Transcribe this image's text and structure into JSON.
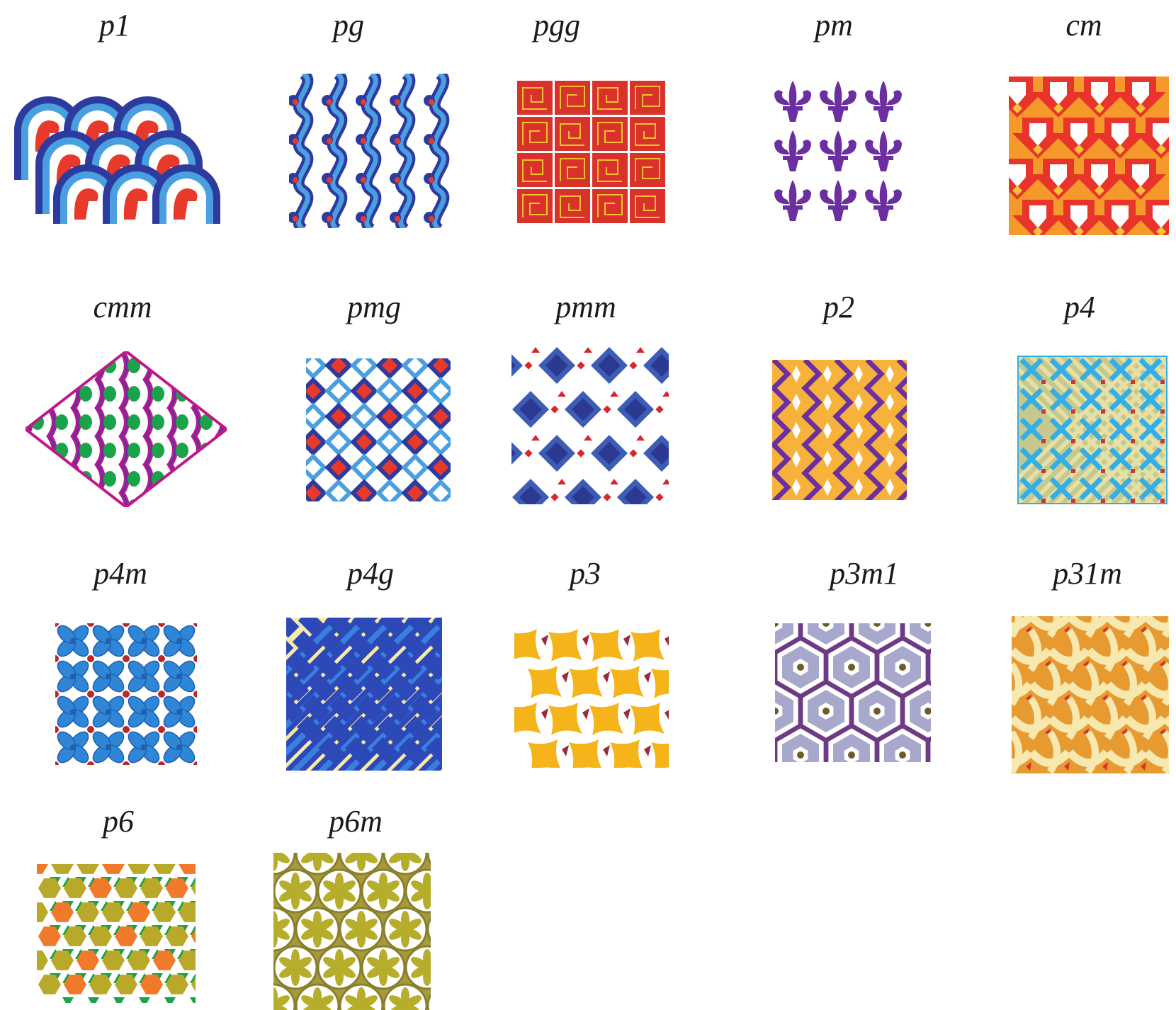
{
  "title": "",
  "groups": [
    {
      "label": "p1"
    },
    {
      "label": "pg"
    },
    {
      "label": "pgg"
    },
    {
      "label": "pm"
    },
    {
      "label": "cm"
    },
    {
      "label": "cmm"
    },
    {
      "label": "pmg"
    },
    {
      "label": "pmm"
    },
    {
      "label": "p2"
    },
    {
      "label": "p4"
    },
    {
      "label": "p4m"
    },
    {
      "label": "p4g"
    },
    {
      "label": "p3"
    },
    {
      "label": "p3m1"
    },
    {
      "label": "p31m"
    },
    {
      "label": "p6"
    },
    {
      "label": "p6m"
    }
  ],
  "palette": {
    "navy": "#2e3b9e",
    "sky": "#4a9fe0",
    "red": "#e8392b",
    "purple": "#6b2fa0",
    "orange": "#f7b23b",
    "gold": "#f4b41a",
    "magenta": "#c0178c",
    "green": "#1aa349",
    "cream": "#f7e9a8",
    "olive": "#b7a52b",
    "lavender": "#a7a8cc"
  }
}
